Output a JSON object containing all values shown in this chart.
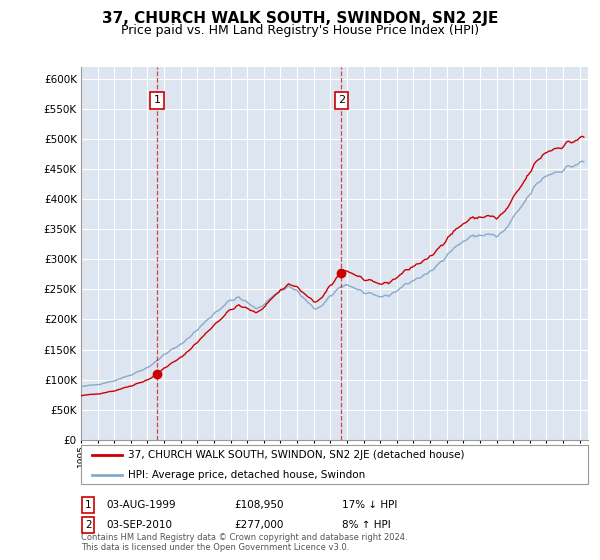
{
  "title": "37, CHURCH WALK SOUTH, SWINDON, SN2 2JE",
  "subtitle": "Price paid vs. HM Land Registry's House Price Index (HPI)",
  "legend_line1": "37, CHURCH WALK SOUTH, SWINDON, SN2 2JE (detached house)",
  "legend_line2": "HPI: Average price, detached house, Swindon",
  "transaction1_date": "03-AUG-1999",
  "transaction1_price": "£108,950",
  "transaction1_hpi": "17% ↓ HPI",
  "transaction1_year": 1999.583,
  "transaction1_value": 108950,
  "transaction2_date": "03-SEP-2010",
  "transaction2_price": "£277,000",
  "transaction2_hpi": "8% ↑ HPI",
  "transaction2_year": 2010.667,
  "transaction2_value": 277000,
  "footer": "Contains HM Land Registry data © Crown copyright and database right 2024.\nThis data is licensed under the Open Government Licence v3.0.",
  "ylim": [
    0,
    620000
  ],
  "xlim_start": 1995.0,
  "xlim_end": 2025.5,
  "bg_color": "#dde5f0",
  "grid_color": "#ffffff",
  "red_color": "#cc0000",
  "blue_color": "#88aacc",
  "title_fontsize": 11,
  "subtitle_fontsize": 9
}
